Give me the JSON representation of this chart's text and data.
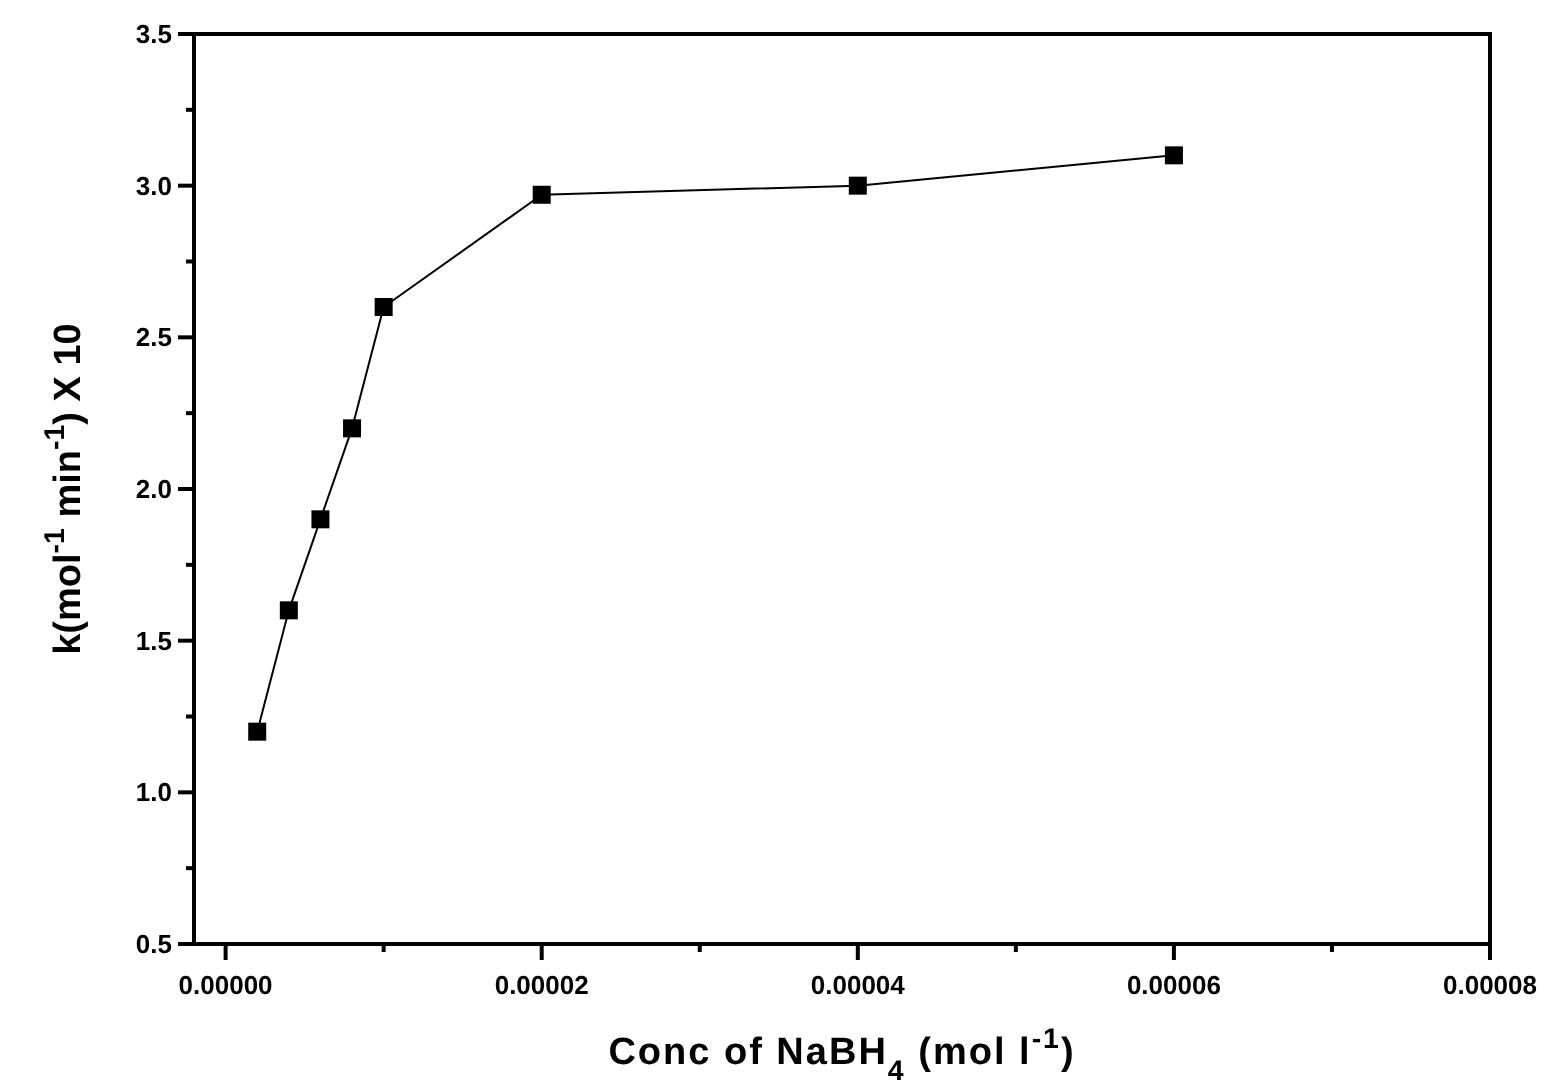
{
  "chart_data": {
    "type": "line",
    "xlabel": "Conc of NaBH$_{4}$ (mol l$^{-1}$)",
    "ylabel": "k(mol$^{-1}$ min$^{-1}$) X 10",
    "x": [
      2e-06,
      4e-06,
      6e-06,
      8e-06,
      1e-05,
      2e-05,
      4e-05,
      6e-05
    ],
    "series": [
      {
        "color": "#000000",
        "values": [
          1.2,
          1.6,
          1.9,
          2.2,
          2.6,
          2.97,
          3.0,
          3.1
        ]
      }
    ],
    "xlim": [
      -2e-06,
      8e-05
    ],
    "xticks": [
      {
        "value": 0,
        "label": "0.00000"
      },
      {
        "value": 1e-05,
        "label": null
      },
      {
        "value": 2e-05,
        "label": "0.00002"
      },
      {
        "value": 3e-05,
        "label": null
      },
      {
        "value": 4e-05,
        "label": "0.00004"
      },
      {
        "value": 5e-05,
        "label": null
      },
      {
        "value": 6e-05,
        "label": "0.00006"
      },
      {
        "value": 7e-05,
        "label": null
      },
      {
        "value": 8e-05,
        "label": "0.00008"
      }
    ],
    "ylim": [
      0.5,
      3.5
    ],
    "yticks": [
      0.5,
      {
        "value": 0.75,
        "label": null
      },
      {
        "value": 1.0,
        "label": "1.0"
      },
      {
        "value": 1.25,
        "label": null
      },
      {
        "value": 1.5,
        "label": "1.5"
      },
      {
        "value": 1.75,
        "label": null
      },
      {
        "value": 2.0,
        "label": "2.0"
      },
      {
        "value": 2.25,
        "label": null
      },
      {
        "value": 2.5,
        "label": "2.5"
      },
      {
        "value": 2.75,
        "label": null
      },
      {
        "value": 3.0,
        "label": "3.0"
      },
      {
        "value": 3.25,
        "label": null
      },
      3.5
    ],
    "marker": "square",
    "line_style": "solid",
    "grid": false
  }
}
